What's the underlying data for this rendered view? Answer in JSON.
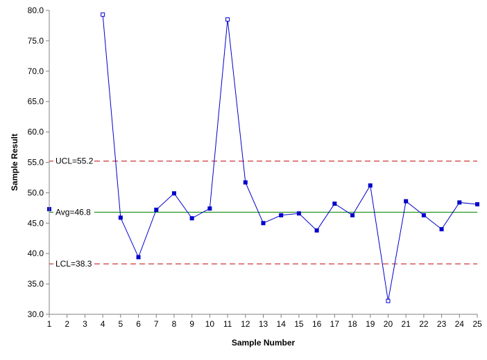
{
  "chart_data": {
    "type": "line",
    "xlabel": "Sample Number",
    "ylabel": "Sample Result",
    "xlim": [
      1,
      25
    ],
    "ylim": [
      30,
      80
    ],
    "y_ticks": [
      "30.0",
      "35.0",
      "40.0",
      "45.0",
      "50.0",
      "55.0",
      "60.0",
      "65.0",
      "70.0",
      "75.0",
      "80.0"
    ],
    "x_ticks": [
      "1",
      "2",
      "3",
      "4",
      "5",
      "6",
      "7",
      "8",
      "9",
      "10",
      "11",
      "12",
      "13",
      "14",
      "15",
      "16",
      "17",
      "18",
      "19",
      "20",
      "21",
      "22",
      "23",
      "24",
      "25"
    ],
    "series": [
      {
        "color": "#0000cc",
        "x": [
          1,
          2,
          3,
          4,
          5,
          6,
          7,
          8,
          9,
          10,
          11,
          12,
          13,
          14,
          15,
          16,
          17,
          18,
          19,
          20,
          21,
          22,
          23,
          24,
          25
        ],
        "values": [
          47.3,
          null,
          null,
          79.3,
          45.9,
          39.4,
          47.2,
          49.9,
          45.8,
          47.4,
          78.5,
          51.7,
          45.0,
          46.3,
          46.6,
          43.8,
          48.2,
          46.3,
          51.2,
          32.2,
          48.6,
          46.3,
          44.0,
          48.4,
          48.1
        ],
        "out_of_control_points": [
          4,
          11,
          20
        ]
      }
    ],
    "control_lines": [
      {
        "label": "UCL=55.2",
        "value": 55.2,
        "color": "#c00000",
        "style": "dashed"
      },
      {
        "label": "Avg=46.8",
        "value": 46.8,
        "color": "#008000",
        "style": "solid"
      },
      {
        "label": "LCL=38.3",
        "value": 38.3,
        "color": "#c00000",
        "style": "dashed"
      }
    ],
    "grid": false,
    "legend": "none"
  }
}
